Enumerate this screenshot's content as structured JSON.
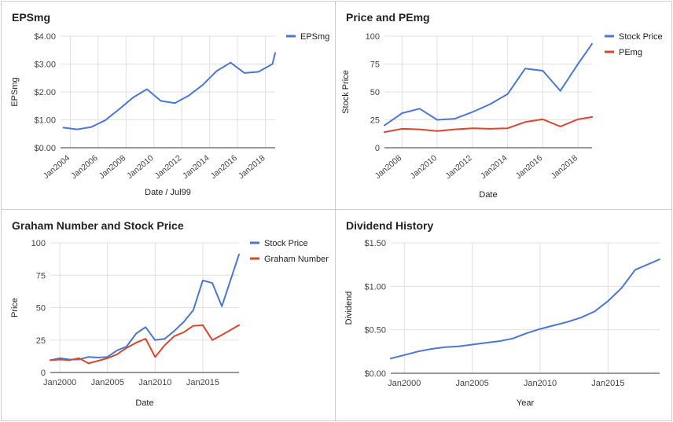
{
  "chart_data": [
    {
      "type": "line",
      "title": "EPSmg",
      "xlabel": "Date / Jul99",
      "ylabel": "EPSmg",
      "x_ticks": [
        "Jan2004",
        "Jan2006",
        "Jan2008",
        "Jan2010",
        "Jan2012",
        "Jan2014",
        "Jan2016",
        "Jan2018"
      ],
      "y_ticks": [
        "$0.00",
        "$1.00",
        "$2.00",
        "$3.00",
        "$4.00"
      ],
      "ylim": [
        0,
        4
      ],
      "xlim": [
        2003.3,
        2018.7
      ],
      "legend": "top-right",
      "series": [
        {
          "name": "EPSmg",
          "color": "#4a77d4",
          "x": [
            2003.5,
            2004.5,
            2005.5,
            2006.5,
            2007.5,
            2008.5,
            2009.5,
            2010.5,
            2011.5,
            2012.5,
            2013.5,
            2014.5,
            2015.5,
            2016.5,
            2017.5,
            2018.5
          ],
          "y": [
            0.72,
            0.66,
            0.74,
            0.98,
            1.38,
            1.8,
            2.1,
            1.68,
            1.6,
            1.87,
            2.25,
            2.75,
            3.05,
            2.68,
            2.72,
            3.0
          ]
        },
        {
          "name": "",
          "color": "#4a77d4",
          "hidden": true,
          "x": [],
          "y": []
        }
      ],
      "tail": {
        "x": 2018.7,
        "y": 3.4
      }
    },
    {
      "type": "line",
      "title": "Price and PEmg",
      "xlabel": "Date",
      "ylabel": "Stock Price",
      "x_ticks": [
        "Jan2008",
        "Jan2010",
        "Jan2012",
        "Jan2014",
        "Jan2016",
        "Jan2018"
      ],
      "y_ticks": [
        "0",
        "25",
        "50",
        "75",
        "100"
      ],
      "ylim": [
        0,
        100
      ],
      "xlim": [
        2007.0,
        2018.8
      ],
      "legend": "top-right",
      "series": [
        {
          "name": "Stock Price",
          "color": "#4a77d4",
          "x": [
            2007.0,
            2008.0,
            2009.0,
            2010.0,
            2011.0,
            2012.0,
            2013.0,
            2014.0,
            2015.0,
            2016.0,
            2017.0,
            2018.0,
            2018.8
          ],
          "y": [
            20,
            31,
            35,
            25,
            26,
            32,
            39,
            48,
            71,
            69,
            51,
            75,
            93
          ]
        },
        {
          "name": "PEmg",
          "color": "#d9452e",
          "x": [
            2007.0,
            2008.0,
            2009.0,
            2010.0,
            2011.0,
            2012.0,
            2013.0,
            2014.0,
            2015.0,
            2016.0,
            2017.0,
            2018.0,
            2018.8
          ],
          "y": [
            14,
            17,
            16.5,
            15,
            16.5,
            17.5,
            17,
            17.5,
            23,
            25.5,
            19,
            25.5,
            27.5
          ]
        }
      ]
    },
    {
      "type": "line",
      "title": "Graham Number and Stock Price",
      "xlabel": "Date",
      "ylabel": "Price",
      "x_ticks": [
        "Jan2000",
        "Jan2005",
        "Jan2010",
        "Jan2015"
      ],
      "y_ticks": [
        "0",
        "25",
        "50",
        "75",
        "100"
      ],
      "ylim": [
        0,
        100
      ],
      "xlim": [
        1999.0,
        2018.8
      ],
      "legend": "top-right",
      "series": [
        {
          "name": "Stock Price",
          "color": "#4a77d4",
          "x": [
            1999,
            2000,
            2001,
            2002,
            2003,
            2004,
            2005,
            2006,
            2007,
            2008,
            2009,
            2010,
            2011,
            2012,
            2013,
            2014,
            2015,
            2016,
            2017,
            2018.8
          ],
          "y": [
            9.5,
            11,
            10,
            10,
            12,
            11.5,
            12,
            17,
            20,
            30,
            35,
            25,
            26,
            32,
            39,
            48,
            71,
            69,
            51,
            91
          ]
        },
        {
          "name": "Graham Number",
          "color": "#d9452e",
          "x": [
            1999,
            2000,
            2001,
            2002,
            2003,
            2004,
            2005,
            2006,
            2007,
            2008,
            2009,
            2010,
            2011,
            2012,
            2013,
            2014,
            2015,
            2016,
            2017,
            2018.8
          ],
          "y": [
            9.5,
            10,
            9.5,
            11,
            7,
            9,
            11,
            14,
            19,
            23,
            26,
            12,
            21,
            28,
            31,
            36,
            36.5,
            25,
            29,
            36.5
          ]
        }
      ],
      "hide_last_stock_index": false
    },
    {
      "type": "line",
      "title": "Dividend History",
      "xlabel": "Year",
      "ylabel": "Dividend",
      "x_ticks": [
        "Jan2000",
        "Jan2005",
        "Jan2010",
        "Jan2015"
      ],
      "y_ticks": [
        "$0.00",
        "$0.50",
        "$1.00",
        "$1.50"
      ],
      "ylim": [
        0,
        1.5
      ],
      "xlim": [
        1999.0,
        2018.8
      ],
      "legend": "none",
      "series": [
        {
          "name": "",
          "color": "#4a77d4",
          "x": [
            1999,
            2000,
            2001,
            2002,
            2003,
            2004,
            2005,
            2006,
            2007,
            2008,
            2009,
            2010,
            2011,
            2012,
            2013,
            2014,
            2015,
            2016,
            2017,
            2018.8
          ],
          "y": [
            0.17,
            0.21,
            0.25,
            0.28,
            0.3,
            0.31,
            0.33,
            0.35,
            0.37,
            0.4,
            0.46,
            0.51,
            0.55,
            0.59,
            0.64,
            0.71,
            0.83,
            0.98,
            1.19,
            1.31
          ]
        }
      ]
    }
  ]
}
